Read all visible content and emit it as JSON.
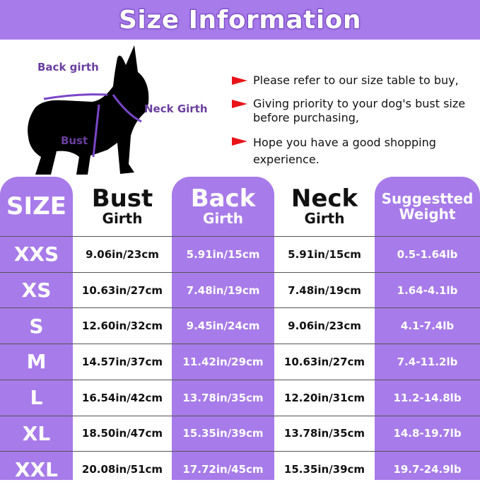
{
  "title": "Size Information",
  "diagram": {
    "back_girth": "Back girth",
    "neck_girth": "Neck Girth",
    "bust": "Bust"
  },
  "notes": [
    "Please refer to our size table to buy,",
    "Giving priority to your dog's bust size before purchasing,",
    "Hope you have a good shopping experience."
  ],
  "colors": {
    "accent": "#a77be9",
    "arrow": "#e8141a"
  },
  "table": {
    "headers": [
      {
        "main": "SIZE",
        "sub": ""
      },
      {
        "main": "Bust",
        "sub": "Girth"
      },
      {
        "main": "Back",
        "sub": "Girth"
      },
      {
        "main": "Neck",
        "sub": "Girth"
      },
      {
        "main": "Suggestted",
        "sub": "Weight"
      }
    ],
    "rows": [
      [
        "XXS",
        "9.06in/23cm",
        "5.91in/15cm",
        "5.91in/15cm",
        "0.5-1.64lb"
      ],
      [
        "XS",
        "10.63in/27cm",
        "7.48in/19cm",
        "7.48in/19cm",
        "1.64-4.1lb"
      ],
      [
        "S",
        "12.60in/32cm",
        "9.45in/24cm",
        "9.06in/23cm",
        "4.1-7.4lb"
      ],
      [
        "M",
        "14.57in/37cm",
        "11.42in/29cm",
        "10.63in/27cm",
        "7.4-11.2lb"
      ],
      [
        "L",
        "16.54in/42cm",
        "13.78in/35cm",
        "12.20in/31cm",
        "11.2-14.8lb"
      ],
      [
        "XL",
        "18.50in/47cm",
        "15.35in/39cm",
        "13.78in/35cm",
        "14.8-19.7lb"
      ],
      [
        "XXL",
        "20.08in/51cm",
        "17.72in/45cm",
        "15.35in/39cm",
        "19.7-24.9lb"
      ]
    ]
  }
}
